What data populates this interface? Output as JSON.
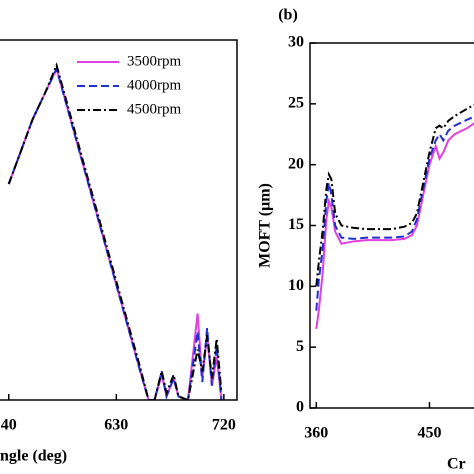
{
  "chart_data": [
    {
      "type": "line",
      "xlabel": "ngle (deg)",
      "xlim": [
        531,
        731
      ],
      "ylim": [
        0,
        10
      ],
      "xticks": [
        {
          "value": 540,
          "label": "40"
        },
        630,
        720
      ],
      "x": [
        540,
        550,
        560,
        570,
        580,
        590,
        600,
        610,
        620,
        630,
        640,
        650,
        657,
        662,
        668,
        672,
        678,
        682,
        690,
        698,
        702,
        706,
        710,
        714,
        718
      ],
      "series": [
        {
          "name": "3500rpm",
          "color": "#e040e0",
          "style": "solid",
          "values": [
            6.0,
            6.9,
            7.8,
            8.5,
            9.2,
            8.0,
            6.8,
            5.6,
            4.4,
            3.2,
            2.0,
            0.8,
            0,
            0,
            0.7,
            0.1,
            0.6,
            0.1,
            0,
            2.4,
            0.6,
            1.8,
            0.4,
            1.2,
            0
          ]
        },
        {
          "name": "4000rpm",
          "color": "#1f2fd0",
          "style": "dashed",
          "values": [
            6.0,
            6.9,
            7.8,
            8.5,
            9.2,
            8.0,
            6.8,
            5.6,
            4.4,
            3.2,
            2.0,
            0.8,
            0,
            0,
            0.8,
            0.1,
            0.6,
            0.1,
            0,
            1.9,
            0.5,
            2.0,
            0.4,
            1.5,
            0
          ]
        },
        {
          "name": "4500rpm",
          "color": "#000000",
          "style": "dashdot",
          "values": [
            6.0,
            6.9,
            7.8,
            8.5,
            9.3,
            8.1,
            6.9,
            5.7,
            4.5,
            3.3,
            2.1,
            0.9,
            0,
            0,
            0.8,
            0.2,
            0.7,
            0.1,
            0,
            1.4,
            0.8,
            1.8,
            0.6,
            1.7,
            0.2
          ]
        }
      ],
      "legend": "upper right"
    },
    {
      "type": "line",
      "title": "(b)",
      "xlabel": "Cr",
      "ylabel": "MOFT (μm)",
      "xlim": [
        355,
        487
      ],
      "ylim": [
        0,
        30
      ],
      "xticks": [
        360,
        450
      ],
      "yticks": [
        0,
        5,
        10,
        15,
        20,
        25,
        30
      ],
      "x": [
        360,
        362,
        365,
        368,
        370,
        372,
        375,
        380,
        390,
        400,
        410,
        420,
        430,
        436,
        440,
        445,
        450,
        455,
        458,
        461,
        465,
        470,
        480,
        487
      ],
      "series": [
        {
          "name": "3500rpm",
          "color": "#e040e0",
          "style": "solid",
          "values": [
            6.5,
            8,
            11,
            15.5,
            17,
            16.5,
            14.5,
            13.5,
            13.7,
            13.8,
            13.8,
            13.8,
            13.9,
            14.2,
            15,
            17.5,
            20,
            21.5,
            20.5,
            21,
            22,
            22.5,
            23,
            23.5
          ]
        },
        {
          "name": "4000rpm",
          "color": "#1f2fd0",
          "style": "dashed",
          "values": [
            8,
            10.5,
            13,
            17,
            18.5,
            17.5,
            15,
            14,
            13.9,
            14,
            14,
            14,
            14.1,
            14.5,
            15.5,
            18,
            20.5,
            22,
            22.5,
            22,
            22.8,
            23.2,
            23.7,
            24
          ]
        },
        {
          "name": "4500rpm",
          "color": "#000000",
          "style": "dashdot",
          "values": [
            10,
            12,
            14.5,
            18,
            19.2,
            18.8,
            16,
            15,
            14.8,
            14.7,
            14.7,
            14.7,
            14.9,
            15.2,
            16,
            18.5,
            21,
            23,
            23.2,
            23,
            23.6,
            24,
            24.6,
            25
          ]
        }
      ]
    }
  ]
}
